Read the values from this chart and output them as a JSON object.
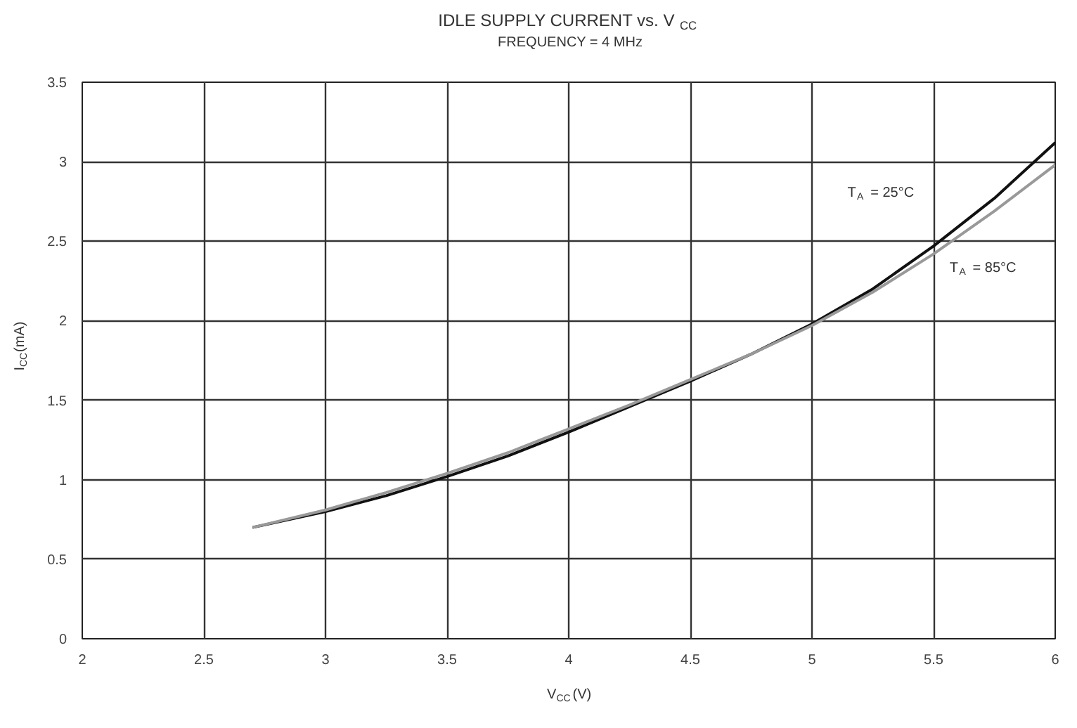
{
  "chart_data": {
    "type": "line",
    "title": "IDLE SUPPLY CURRENT vs. V$_{CC}$",
    "subtitle": "FREQUENCY = 4 MHz",
    "xlabel": "V$_{CC}$(V)",
    "ylabel": "I$_{CC}$(mA)",
    "x": [
      2.7,
      3.0,
      3.25,
      3.5,
      3.75,
      4.0,
      4.25,
      4.5,
      4.75,
      5.0,
      5.25,
      5.5,
      5.75,
      6.0
    ],
    "series": [
      {
        "color": "#111111",
        "values": [
          0.7,
          0.8,
          0.9,
          1.02,
          1.15,
          1.3,
          1.46,
          1.62,
          1.79,
          1.98,
          2.2,
          2.47,
          2.77,
          3.12
        ]
      },
      {
        "color": "#999999",
        "values": [
          0.7,
          0.81,
          0.92,
          1.04,
          1.17,
          1.32,
          1.47,
          1.63,
          1.79,
          1.97,
          2.18,
          2.42,
          2.69,
          2.98
        ]
      }
    ],
    "xlim": [
      2,
      6
    ],
    "xticks": [
      2,
      2.5,
      3,
      3.5,
      4,
      4.5,
      5,
      5.5,
      6
    ],
    "ylim": [
      0,
      3.5
    ],
    "yticks": [
      0,
      0.5,
      1,
      1.5,
      2,
      2.5,
      3,
      3.5
    ],
    "grid": true,
    "line_style": "solid",
    "marker": "none",
    "annotations": [
      "T$_{A}$ = 25°C",
      "T$_{A}$ = 85°C"
    ]
  }
}
